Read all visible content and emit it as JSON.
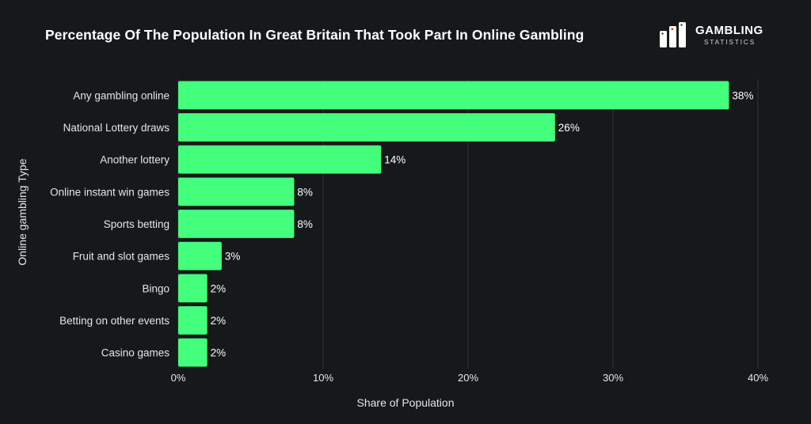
{
  "chart_data": {
    "type": "bar",
    "orientation": "horizontal",
    "title": "Percentage Of The Population In Great Britain That Took Part In Online Gambling",
    "xlabel": "Share of Population",
    "ylabel": "Online gambling Type",
    "categories": [
      "Any gambling online",
      "National Lottery draws",
      "Another lottery",
      "Online instant win games",
      "Sports betting",
      "Fruit and slot games",
      "Bingo",
      "Betting on other events",
      "Casino games"
    ],
    "values": [
      38,
      26,
      14,
      8,
      8,
      3,
      2,
      2,
      2
    ],
    "value_labels": [
      "38%",
      "26%",
      "14%",
      "8%",
      "8%",
      "3%",
      "2%",
      "2%",
      "2%"
    ],
    "xlim": [
      0,
      40
    ],
    "xticks": [
      0,
      10,
      20,
      30,
      40
    ],
    "xtick_labels": [
      "0%",
      "10%",
      "20%",
      "30%",
      "40%"
    ],
    "grid": true,
    "bar_color": "#44ff7c"
  },
  "logo": {
    "name": "GAMBLING",
    "sub": "STATISTICS"
  }
}
